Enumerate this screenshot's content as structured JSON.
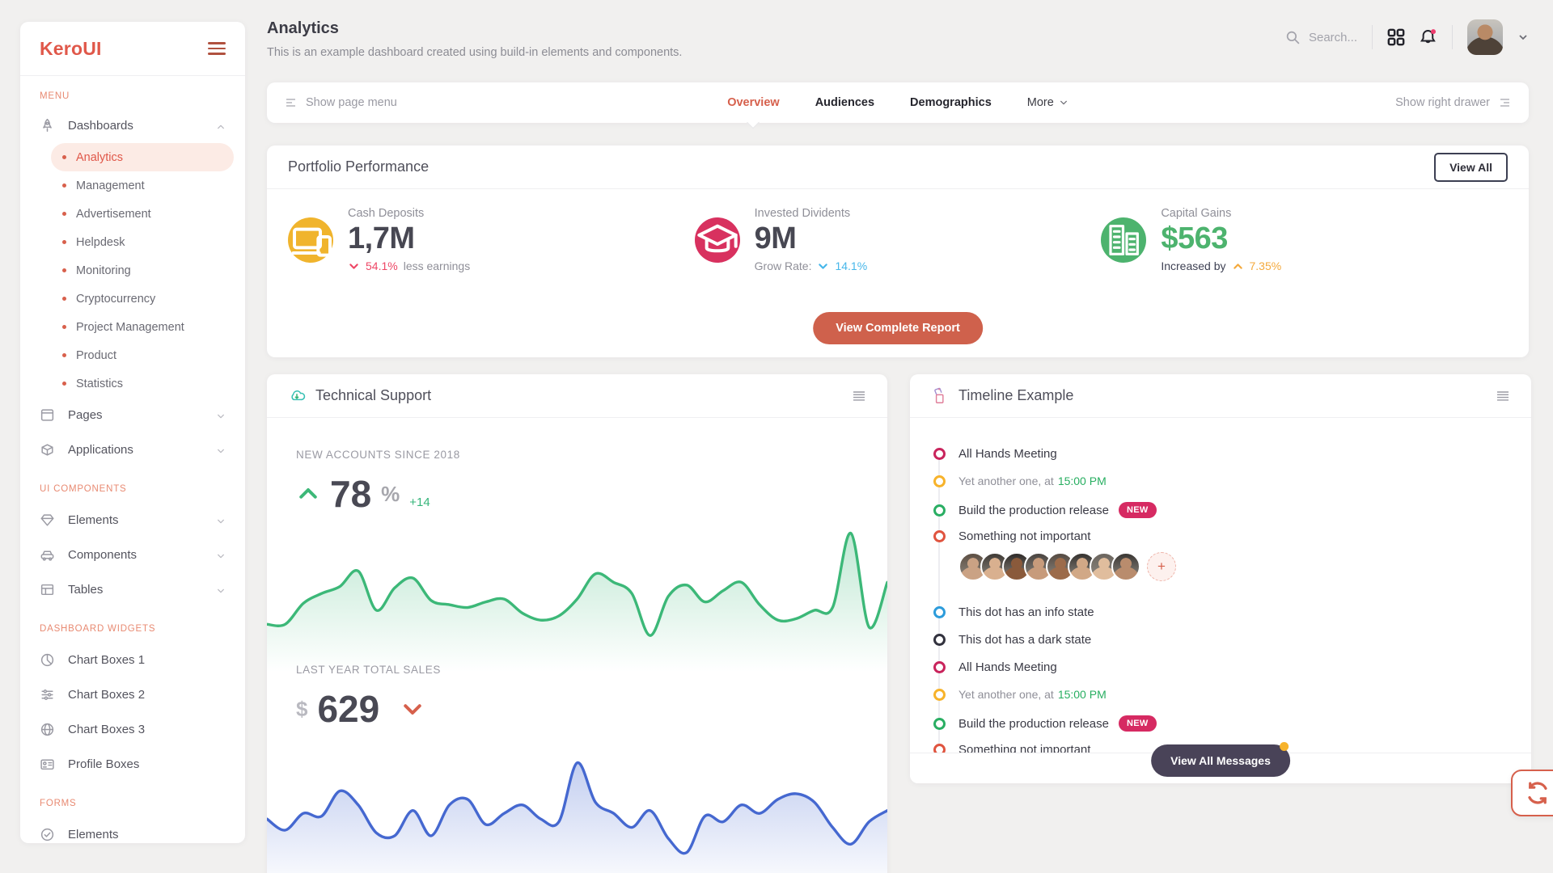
{
  "app": {
    "logo": "KeroUI"
  },
  "sidebar": {
    "menu_label": "MENU",
    "sections": [
      {
        "label": "",
        "items": [
          {
            "label": "Dashboards",
            "icon": "rocket-icon",
            "expanded": true,
            "children": [
              "Analytics",
              "Management",
              "Advertisement",
              "Helpdesk",
              "Monitoring",
              "Cryptocurrency",
              "Project Management",
              "Product",
              "Statistics"
            ],
            "active_child": "Analytics"
          },
          {
            "label": "Pages",
            "icon": "window-icon",
            "chevron": true
          },
          {
            "label": "Applications",
            "icon": "box-icon",
            "chevron": true
          }
        ]
      },
      {
        "label": "UI COMPONENTS",
        "items": [
          {
            "label": "Elements",
            "icon": "diamond-icon",
            "chevron": true
          },
          {
            "label": "Components",
            "icon": "car-icon",
            "chevron": true
          },
          {
            "label": "Tables",
            "icon": "table-icon",
            "chevron": true
          }
        ]
      },
      {
        "label": "DASHBOARD WIDGETS",
        "items": [
          {
            "label": "Chart Boxes 1",
            "icon": "pie-chart-icon"
          },
          {
            "label": "Chart Boxes 2",
            "icon": "sliders-icon"
          },
          {
            "label": "Chart Boxes 3",
            "icon": "globe-icon"
          },
          {
            "label": "Profile Boxes",
            "icon": "id-card-icon"
          }
        ]
      },
      {
        "label": "FORMS",
        "items": [
          {
            "label": "Elements",
            "icon": "check-circle-icon"
          }
        ]
      }
    ]
  },
  "header": {
    "title": "Analytics",
    "subtitle": "This is an example dashboard created using build-in elements and components.",
    "search_placeholder": "Search..."
  },
  "toolbar": {
    "show_page_menu": "Show page menu",
    "tabs": [
      {
        "label": "Overview",
        "active": true
      },
      {
        "label": "Audiences"
      },
      {
        "label": "Demographics"
      },
      {
        "label": "More",
        "dropdown": true
      }
    ],
    "show_right_drawer": "Show right drawer"
  },
  "portfolio": {
    "title": "Portfolio Performance",
    "view_all": "View All",
    "cta": "View Complete Report",
    "accent_color": "#cf614c",
    "stats": [
      {
        "label": "Cash Deposits",
        "value": "1,7M",
        "icon": "devices-icon",
        "icon_bg": "#f0b42d",
        "trend": "down",
        "trend_color": "#ee4766",
        "pct": "54.1%",
        "suffix": "less earnings"
      },
      {
        "label": "Invested Dividents",
        "value": "9M",
        "icon": "graduation-cap-icon",
        "icon_bg": "#d8315f",
        "prefix": "Grow Rate:",
        "trend": "down",
        "trend_color": "#47b7ea",
        "pct": "14.1%"
      },
      {
        "label": "Capital Gains",
        "value": "$563",
        "value_color": "#4db36e",
        "icon": "buildings-icon",
        "icon_bg": "#4db36e",
        "prefix": "Increased by",
        "prefix_dark": true,
        "trend": "up",
        "trend_color": "#f4a93c",
        "pct": "7.35%"
      }
    ]
  },
  "technical_support": {
    "title": "Technical Support",
    "kpi1": {
      "caption": "NEW ACCOUNTS SINCE 2018",
      "value": "78",
      "unit": "%",
      "delta": "+14"
    },
    "kpi2": {
      "caption": "LAST YEAR TOTAL SALES",
      "prefix": "$",
      "value": "629"
    }
  },
  "timeline": {
    "title": "Timeline Example",
    "view_all_label": "View All Messages",
    "items": [
      {
        "text": "All Hands Meeting",
        "dot": "#c9245c"
      },
      {
        "text": "Yet another one, at",
        "time": "15:00 PM",
        "dot": "#f7b32b",
        "muted": true
      },
      {
        "text": "Build the production release",
        "badge": "NEW",
        "dot": "#2aae63"
      },
      {
        "text": "Something not important",
        "dot": "#e0543f",
        "avatars": true
      },
      {
        "text": "This dot has an info state",
        "dot": "#2d9cdb"
      },
      {
        "text": "This dot has a dark state",
        "dot": "#32323e"
      },
      {
        "text": "All Hands Meeting",
        "dot": "#c9245c"
      },
      {
        "text": "Yet another one, at",
        "time": "15:00 PM",
        "dot": "#f7b32b",
        "muted": true
      },
      {
        "text": "Build the production release",
        "badge": "NEW",
        "dot": "#2aae63"
      },
      {
        "text": "Something not important",
        "dot": "#e0543f"
      }
    ],
    "avatar_colors": [
      [
        "#caa284",
        "#5d4f43"
      ],
      [
        "#d9b08f",
        "#3f3a35"
      ],
      [
        "#8a5a3b",
        "#2e2a28"
      ],
      [
        "#c79b7b",
        "#4a4440"
      ],
      [
        "#9c6b4a",
        "#554a42"
      ],
      [
        "#d1a886",
        "#35322f"
      ],
      [
        "#e0bd9d",
        "#6b655e"
      ],
      [
        "#b98c6d",
        "#3a3633"
      ]
    ]
  },
  "chart_data": [
    {
      "type": "area",
      "name": "New accounts since 2018",
      "color": "#3cb878",
      "ylim": [
        0,
        100
      ],
      "values": [
        30,
        30,
        45,
        52,
        57,
        68,
        40,
        56,
        63,
        47,
        44,
        42,
        46,
        48,
        38,
        33,
        36,
        48,
        66,
        60,
        52,
        22,
        50,
        58,
        46,
        54,
        60,
        44,
        33,
        34,
        40,
        42,
        95,
        28,
        60
      ],
      "grid": false,
      "legend": "none",
      "axes": "hidden"
    },
    {
      "type": "area",
      "name": "Last year total sales",
      "color": "#4568d0",
      "ylim": [
        0,
        100
      ],
      "values": [
        48,
        40,
        52,
        50,
        68,
        58,
        38,
        36,
        54,
        36,
        58,
        62,
        44,
        52,
        58,
        48,
        46,
        88,
        60,
        52,
        42,
        54,
        34,
        24,
        50,
        46,
        58,
        52,
        62,
        66,
        60,
        42,
        30,
        46,
        54
      ],
      "grid": false,
      "legend": "none",
      "axes": "hidden"
    }
  ]
}
